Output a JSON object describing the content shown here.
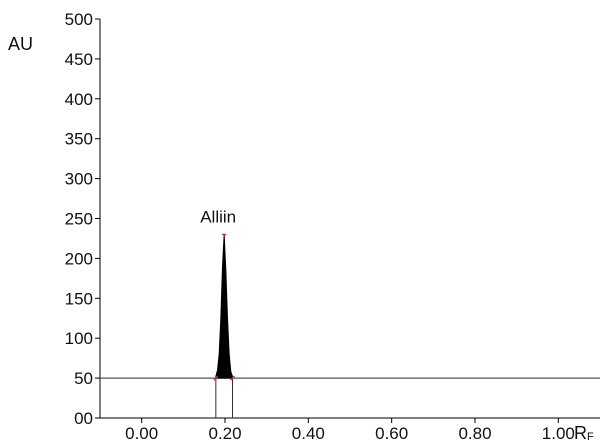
{
  "chart_data": {
    "type": "area",
    "xlabel": "RF",
    "ylabel": "AU",
    "xlim": [
      -0.1,
      1.1
    ],
    "ylim": [
      0,
      500
    ],
    "x_ticks": [
      0.0,
      0.2,
      0.4,
      0.6,
      0.8,
      1.0
    ],
    "x_tick_labels": [
      "0.00",
      "0.20",
      "0.40",
      "0.60",
      "0.80",
      "1.00"
    ],
    "y_ticks": [
      0,
      50,
      100,
      150,
      200,
      250,
      300,
      350,
      400,
      450,
      500
    ],
    "y_tick_labels": [
      "00",
      "50",
      "100",
      "150",
      "200",
      "250",
      "300",
      "350",
      "400",
      "450",
      "500"
    ],
    "baseline": 50,
    "peaks": [
      {
        "label": "Alliin",
        "apex_rf": 0.198,
        "apex_au": 230,
        "start_rf": 0.178,
        "end_rf": 0.218,
        "profile": {
          "x": [
            0.178,
            0.182,
            0.186,
            0.19,
            0.194,
            0.198,
            0.202,
            0.206,
            0.21,
            0.214,
            0.218
          ],
          "y": [
            52,
            60,
            80,
            125,
            190,
            230,
            185,
            125,
            80,
            58,
            52
          ]
        }
      }
    ],
    "colors": {
      "peak_fill": "#000000",
      "axis": "#000000",
      "baseline": "#555555",
      "marker": "#e03030"
    },
    "grid": false,
    "legend": "none"
  }
}
